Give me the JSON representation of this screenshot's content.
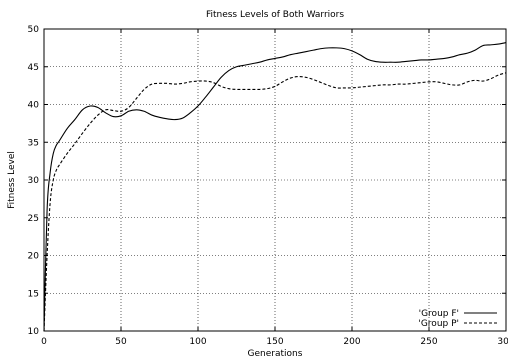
{
  "chart_data": {
    "type": "line",
    "title": "Fitness Levels of Both Warriors",
    "xlabel": "Generations",
    "ylabel": "Fitness Level",
    "xlim": [
      0,
      300
    ],
    "ylim": [
      10,
      50
    ],
    "xticks": [
      0,
      50,
      100,
      150,
      200,
      250,
      300
    ],
    "yticks": [
      10,
      15,
      20,
      25,
      30,
      35,
      40,
      45,
      50
    ],
    "grid": true,
    "legend_position": "bottom-right",
    "series": [
      {
        "name": "'Group F'",
        "style": "solid",
        "color": "#000000",
        "x": [
          0,
          2,
          4,
          6,
          8,
          10,
          15,
          20,
          25,
          30,
          35,
          40,
          45,
          50,
          55,
          60,
          65,
          70,
          75,
          80,
          85,
          90,
          95,
          100,
          105,
          110,
          115,
          120,
          125,
          130,
          135,
          140,
          145,
          150,
          155,
          160,
          165,
          170,
          175,
          180,
          185,
          190,
          195,
          200,
          205,
          210,
          215,
          220,
          225,
          230,
          235,
          240,
          245,
          250,
          255,
          260,
          265,
          270,
          275,
          280,
          285,
          290,
          295,
          300
        ],
        "y": [
          10,
          26,
          31,
          33.5,
          34.6,
          35.2,
          36.8,
          38.0,
          39.3,
          39.8,
          39.6,
          38.9,
          38.4,
          38.5,
          39.1,
          39.3,
          39.1,
          38.6,
          38.3,
          38.1,
          38.0,
          38.2,
          38.9,
          39.8,
          41.0,
          42.3,
          43.6,
          44.5,
          45.0,
          45.2,
          45.4,
          45.6,
          45.9,
          46.1,
          46.3,
          46.6,
          46.8,
          47.0,
          47.2,
          47.4,
          47.5,
          47.5,
          47.4,
          47.1,
          46.6,
          46.0,
          45.7,
          45.6,
          45.6,
          45.6,
          45.7,
          45.8,
          45.9,
          45.9,
          46.0,
          46.1,
          46.3,
          46.6,
          46.8,
          47.2,
          47.8,
          47.9,
          48.0,
          48.2
        ]
      },
      {
        "name": "'Group P'",
        "style": "dashed",
        "color": "#000000",
        "x": [
          0,
          2,
          4,
          6,
          8,
          10,
          15,
          20,
          25,
          30,
          35,
          40,
          45,
          50,
          55,
          60,
          65,
          70,
          75,
          80,
          85,
          90,
          95,
          100,
          105,
          110,
          115,
          120,
          125,
          130,
          135,
          140,
          145,
          150,
          155,
          160,
          165,
          170,
          175,
          180,
          185,
          190,
          195,
          200,
          205,
          210,
          215,
          220,
          225,
          230,
          235,
          240,
          245,
          250,
          255,
          260,
          265,
          270,
          275,
          280,
          285,
          290,
          295,
          300
        ],
        "y": [
          10,
          20,
          27,
          30,
          31.3,
          32.0,
          33.5,
          34.8,
          36.2,
          37.5,
          38.6,
          39.3,
          39.2,
          39.1,
          39.6,
          40.8,
          42.0,
          42.7,
          42.8,
          42.8,
          42.7,
          42.8,
          43.0,
          43.1,
          43.1,
          42.9,
          42.4,
          42.1,
          42.0,
          42.0,
          42.0,
          42.0,
          42.1,
          42.4,
          43.0,
          43.5,
          43.7,
          43.6,
          43.3,
          42.9,
          42.5,
          42.2,
          42.2,
          42.2,
          42.3,
          42.4,
          42.5,
          42.6,
          42.6,
          42.7,
          42.7,
          42.8,
          42.9,
          43.0,
          43.0,
          42.8,
          42.6,
          42.6,
          43.0,
          43.2,
          43.1,
          43.4,
          43.9,
          44.2
        ]
      }
    ]
  }
}
